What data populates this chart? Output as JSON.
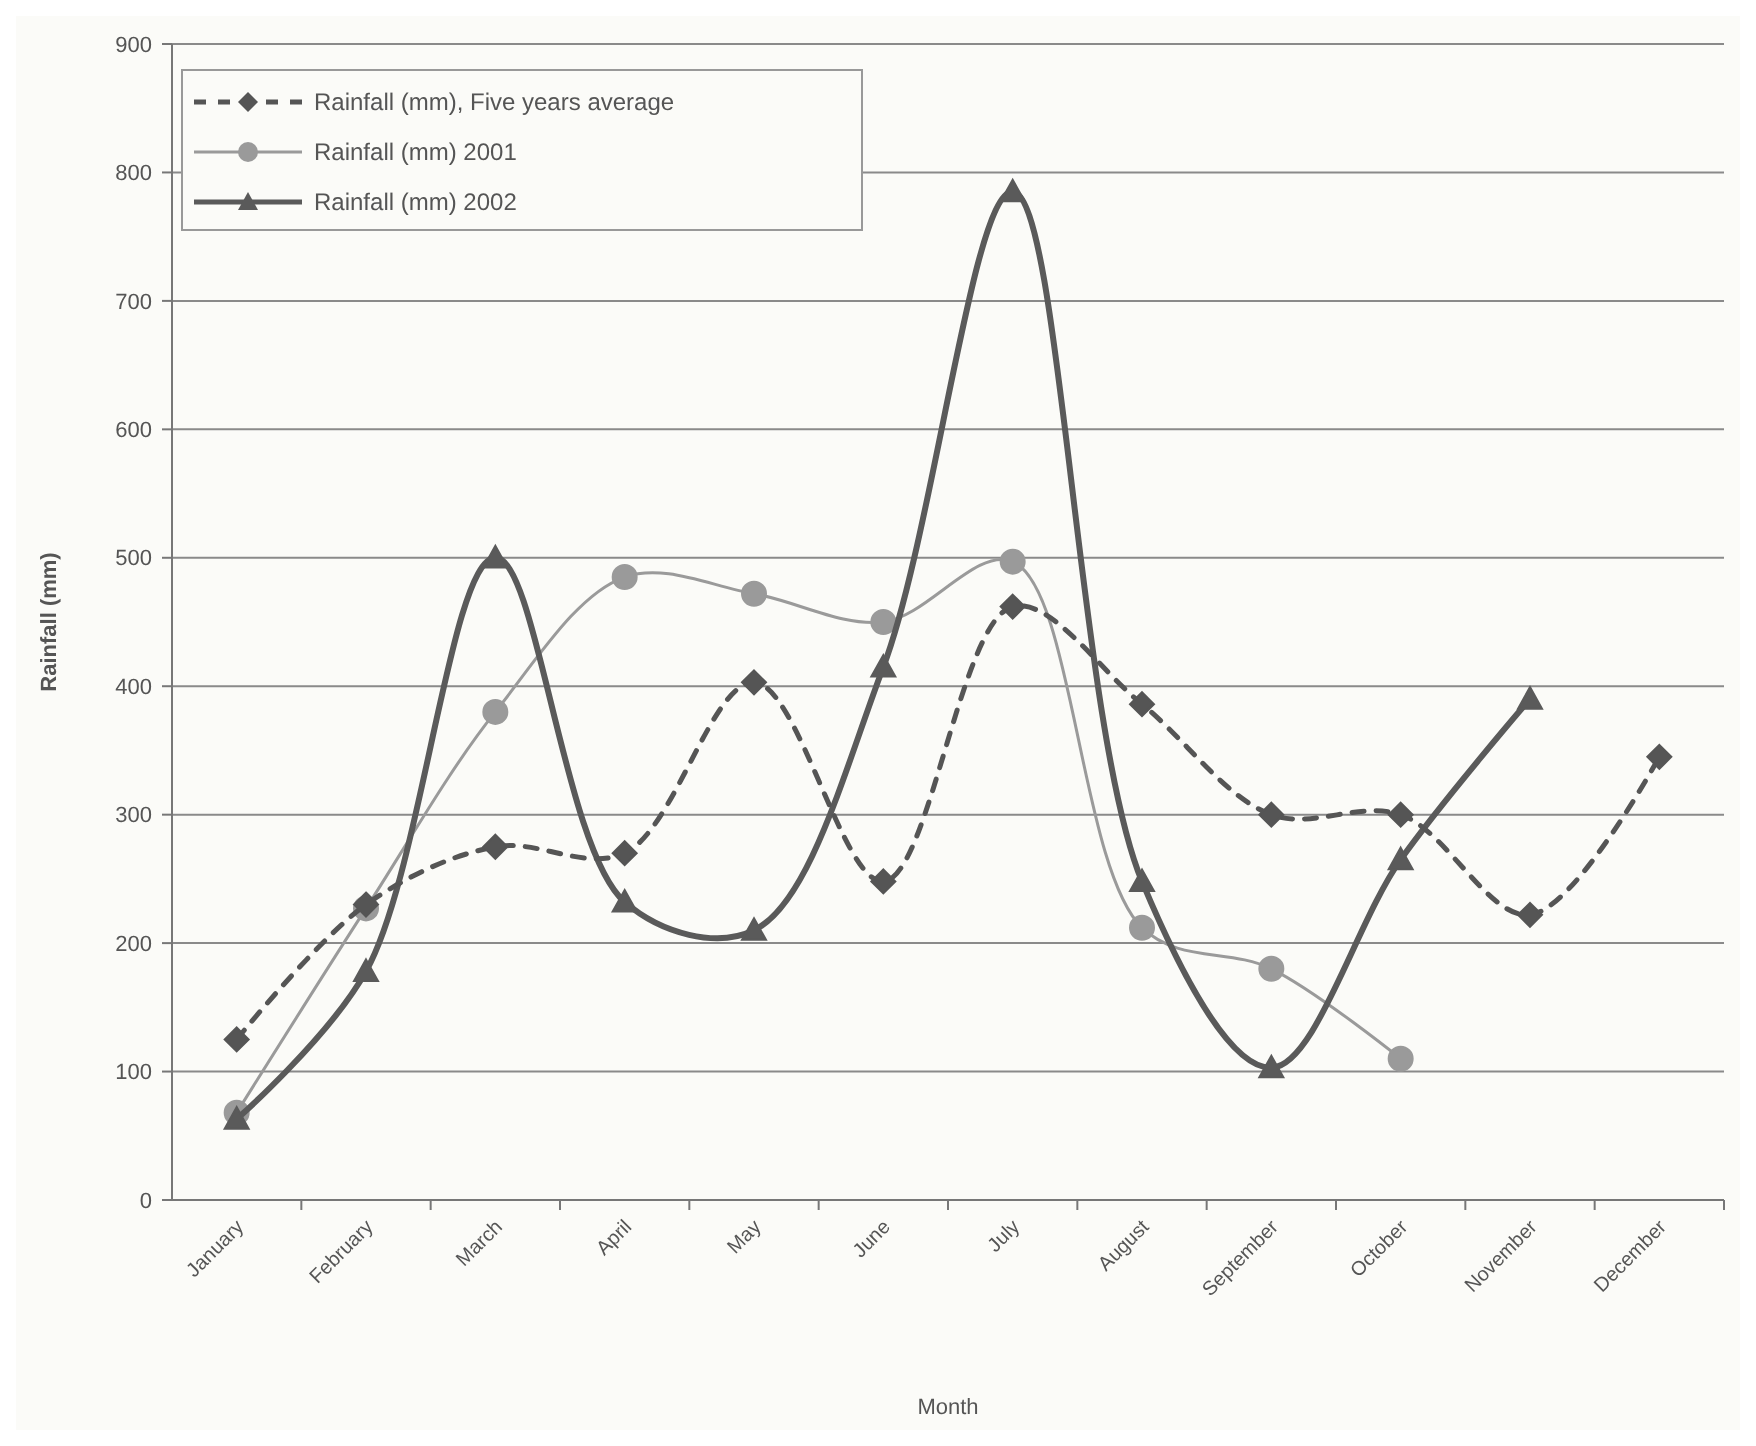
{
  "chart_data": {
    "type": "line",
    "xlabel": "Month",
    "ylabel": "Rainfall (mm)",
    "categories": [
      "January",
      "February",
      "March",
      "April",
      "May",
      "June",
      "July",
      "August",
      "September",
      "October",
      "November",
      "December"
    ],
    "series": [
      {
        "name": "Rainfall (mm), Five years average",
        "color": "#555555",
        "marker": "diamond",
        "line_style": "dashed",
        "values": [
          125,
          230,
          275,
          270,
          403,
          248,
          462,
          386,
          300,
          300,
          222,
          345
        ]
      },
      {
        "name": "Rainfall (mm) 2001",
        "color": "#9a9a9a",
        "marker": "circle",
        "line_style": "solid",
        "values": [
          68,
          227,
          380,
          485,
          472,
          450,
          497,
          212,
          180,
          110,
          null,
          null
        ]
      },
      {
        "name": "Rainfall (mm) 2002",
        "color": "#5a5a5a",
        "marker": "triangle",
        "line_style": "solid",
        "values": [
          63,
          178,
          500,
          232,
          210,
          415,
          785,
          248,
          103,
          265,
          390,
          null
        ]
      }
    ],
    "ylim": [
      0,
      900
    ],
    "yticks": [
      0,
      100,
      200,
      300,
      400,
      500,
      600,
      700,
      800,
      900
    ],
    "grid": "y",
    "legend": "top left"
  }
}
